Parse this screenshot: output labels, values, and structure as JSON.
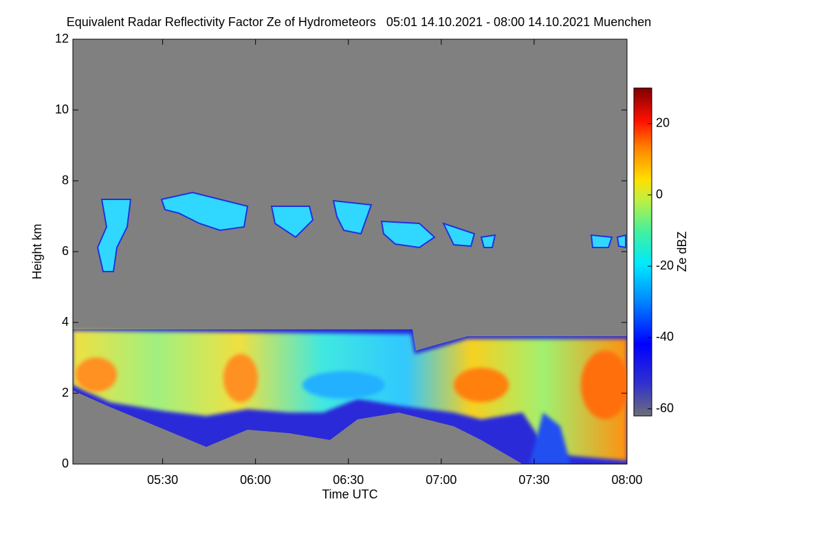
{
  "chart_data": {
    "type": "heatmap",
    "title": "Equivalent Radar Reflectivity Factor Ze of Hydrometeors   05:01 14.10.2021 - 08:00 14.10.2021 Muenchen",
    "xlabel": "Time UTC",
    "ylabel": "Height km",
    "xlim": [
      301,
      480
    ],
    "xticks": [
      {
        "value": 330,
        "label": "05:30"
      },
      {
        "value": 360,
        "label": "06:00"
      },
      {
        "value": 390,
        "label": "06:30"
      },
      {
        "value": 420,
        "label": "07:00"
      },
      {
        "value": 450,
        "label": "07:30"
      },
      {
        "value": 480,
        "label": "08:00"
      }
    ],
    "ylim": [
      0,
      12
    ],
    "yticks": [
      0,
      2,
      4,
      6,
      8,
      10,
      12
    ],
    "colorbar": {
      "label": "Ze dBZ",
      "clim": [
        -62,
        30
      ],
      "ticks": [
        -60,
        -40,
        -20,
        0,
        20
      ]
    }
  }
}
